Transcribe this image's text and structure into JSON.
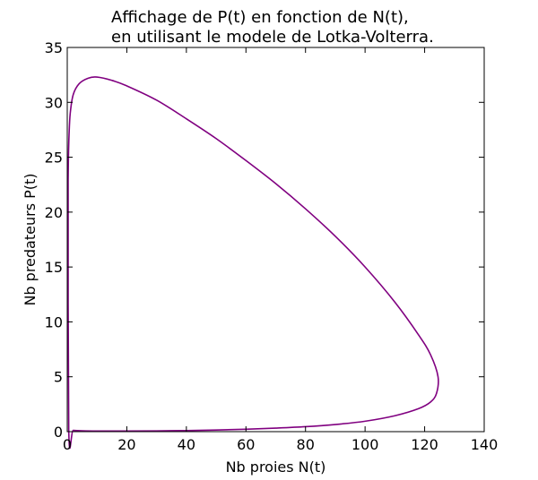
{
  "chart_data": {
    "type": "line",
    "title_lines": [
      "Affichage de P(t) en fonction de N(t),",
      "en utilisant le modele de Lotka-Volterra."
    ],
    "xlabel": "Nb proies N(t)",
    "ylabel": "Nb predateurs P(t)",
    "xlim": [
      0,
      140
    ],
    "ylim": [
      0,
      35
    ],
    "xticks": [
      0,
      20,
      40,
      60,
      80,
      100,
      120,
      140
    ],
    "yticks": [
      0,
      5,
      10,
      15,
      20,
      25,
      30,
      35
    ],
    "grid": false,
    "legend": "none",
    "series": [
      {
        "color": "#800080",
        "x": [
          0.3,
          0.4,
          0.6,
          1.0,
          2.0,
          4.0,
          7.0,
          10.0,
          15.0,
          20.0,
          30.0,
          40.0,
          50.0,
          60.0,
          70.0,
          80.0,
          90.0,
          100.0,
          110.0,
          118.0,
          122.0,
          124.5,
          124.0,
          122.0,
          118.0,
          110.0,
          100.0,
          90.0,
          80.0,
          70.0,
          60.0,
          50.0,
          40.0,
          30.0,
          20.0,
          10.0,
          5.0,
          2.0,
          0.5,
          0.3
        ],
        "y": [
          23.0,
          25.0,
          27.0,
          29.0,
          30.7,
          31.7,
          32.2,
          32.3,
          32.0,
          31.5,
          30.2,
          28.5,
          26.7,
          24.7,
          22.6,
          20.3,
          17.8,
          15.0,
          11.8,
          8.8,
          7.0,
          5.0,
          3.5,
          2.7,
          2.1,
          1.45,
          0.95,
          0.65,
          0.45,
          0.32,
          0.22,
          0.15,
          0.1,
          0.07,
          0.06,
          0.06,
          0.08,
          0.12,
          0.2,
          23.0
        ]
      }
    ]
  }
}
